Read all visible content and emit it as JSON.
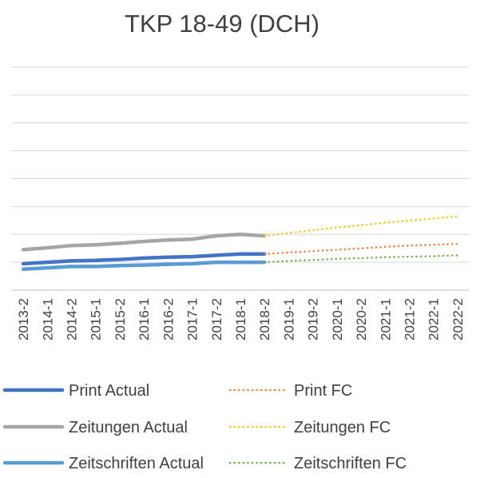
{
  "chart_data": {
    "type": "line",
    "title": "TKP 18-49 (DCH)",
    "xlabel": "",
    "ylabel": "",
    "grid": true,
    "legend_position": "bottom",
    "y_axis_labels_visible": false,
    "ylim": [
      0,
      8
    ],
    "categories": [
      "2013-2",
      "2014-1",
      "2014-2",
      "2015-1",
      "2015-2",
      "2016-1",
      "2016-2",
      "2017-1",
      "2017-2",
      "2018-1",
      "2018-2",
      "2019-1",
      "2019-2",
      "2020-1",
      "2020-2",
      "2021-1",
      "2021-2",
      "2022-1",
      "2022-2"
    ],
    "series": [
      {
        "name": "Print Actual",
        "style": "solid",
        "color": "#4472C4",
        "values": [
          0.95,
          1.0,
          1.05,
          1.07,
          1.1,
          1.15,
          1.18,
          1.2,
          1.25,
          1.3,
          1.3,
          null,
          null,
          null,
          null,
          null,
          null,
          null,
          null
        ]
      },
      {
        "name": "Zeitungen Actual",
        "style": "solid",
        "color": "#A5A5A5",
        "values": [
          1.45,
          1.52,
          1.6,
          1.63,
          1.68,
          1.75,
          1.8,
          1.83,
          1.95,
          2.0,
          1.95,
          null,
          null,
          null,
          null,
          null,
          null,
          null,
          null
        ]
      },
      {
        "name": "Zeitschriften Actual",
        "style": "solid",
        "color": "#5B9BD5",
        "values": [
          0.75,
          0.8,
          0.85,
          0.85,
          0.88,
          0.9,
          0.93,
          0.95,
          1.0,
          1.0,
          1.0,
          null,
          null,
          null,
          null,
          null,
          null,
          null,
          null
        ]
      },
      {
        "name": "Print FC",
        "style": "dotted",
        "color": "#ED7D31",
        "values": [
          null,
          null,
          null,
          null,
          null,
          null,
          null,
          null,
          null,
          null,
          1.3,
          1.35,
          1.4,
          1.45,
          1.5,
          1.55,
          1.6,
          1.63,
          1.66
        ]
      },
      {
        "name": "Zeitungen FC",
        "style": "dotted",
        "color": "#FFC000",
        "values": [
          null,
          null,
          null,
          null,
          null,
          null,
          null,
          null,
          null,
          null,
          1.95,
          2.05,
          2.15,
          2.25,
          2.33,
          2.42,
          2.5,
          2.57,
          2.65
        ]
      },
      {
        "name": "Zeitschriften FC",
        "style": "dotted",
        "color": "#70AD47",
        "values": [
          null,
          null,
          null,
          null,
          null,
          null,
          null,
          null,
          null,
          null,
          1.0,
          1.05,
          1.08,
          1.12,
          1.15,
          1.18,
          1.2,
          1.22,
          1.25
        ]
      }
    ]
  }
}
